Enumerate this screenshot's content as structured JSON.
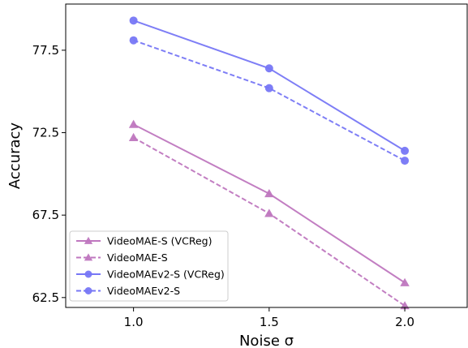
{
  "chart_data": {
    "type": "line",
    "title": "",
    "xlabel": "Noise σ",
    "ylabel": "Accuracy",
    "xlim": [
      0.75,
      2.23
    ],
    "ylim": [
      61.9,
      80.3
    ],
    "x_ticks": [
      {
        "value": 1.0,
        "label": "1.0"
      },
      {
        "value": 1.5,
        "label": "1.5"
      },
      {
        "value": 2.0,
        "label": "2.0"
      }
    ],
    "y_ticks": [
      {
        "value": 62.5,
        "label": "62.5"
      },
      {
        "value": 67.5,
        "label": "67.5"
      },
      {
        "value": 72.5,
        "label": "72.5"
      },
      {
        "value": 77.5,
        "label": "77.5"
      }
    ],
    "grid": false,
    "legend_position": "lower-left",
    "x": [
      1.0,
      1.5,
      2.0
    ],
    "series": [
      {
        "name": "VideoMAE-S (VCReg)",
        "values": [
          73.0,
          68.8,
          63.4
        ],
        "color": "#bf77bf",
        "marker": "triangle",
        "dashed": false
      },
      {
        "name": "VideoMAE-S",
        "values": [
          72.2,
          67.6,
          62.0
        ],
        "color": "#bf77bf",
        "marker": "triangle",
        "dashed": true
      },
      {
        "name": "VideoMAEv2-S (VCReg)",
        "values": [
          79.3,
          76.4,
          71.4
        ],
        "color": "#7777f5",
        "marker": "circle",
        "dashed": false
      },
      {
        "name": "VideoMAEv2-S",
        "values": [
          78.1,
          75.2,
          70.8
        ],
        "color": "#7777f5",
        "marker": "circle",
        "dashed": true
      }
    ]
  }
}
